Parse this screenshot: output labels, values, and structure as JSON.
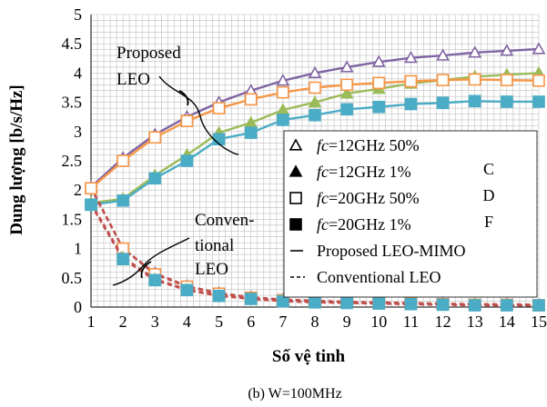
{
  "colors": {
    "purple": "#8064A2",
    "green": "#9BBB59",
    "orange": "#F79646",
    "blue": "#4BACC6",
    "dash_red": "#C0504D",
    "grid": "#bfbfbf"
  },
  "chart_data": {
    "type": "line",
    "xlabel": "Số vệ tinh",
    "ylabel": "Dung lượng [b/s/Hz]",
    "caption": "(b) W=100MHz",
    "xlim": [
      1,
      15
    ],
    "ylim": [
      0,
      5
    ],
    "x": [
      1,
      2,
      3,
      4,
      5,
      6,
      7,
      8,
      9,
      10,
      11,
      12,
      13,
      14,
      15
    ],
    "xticks": [
      "1",
      "2",
      "3",
      "4",
      "5",
      "6",
      "7",
      "8",
      "9",
      "10",
      "11",
      "12",
      "13",
      "14",
      "15"
    ],
    "yticks": [
      "0",
      "0.5",
      "1",
      "1.5",
      "2",
      "2.5",
      "3",
      "3.5",
      "4",
      "4.5",
      "5"
    ],
    "grid": true,
    "series": [
      {
        "name": "fc=12GHz 50%",
        "style": "solid",
        "marker": "triangle-open",
        "color": "purple",
        "values": [
          2.05,
          2.55,
          2.95,
          3.25,
          3.5,
          3.7,
          3.87,
          4.0,
          4.1,
          4.19,
          4.26,
          4.3,
          4.35,
          4.38,
          4.41
        ]
      },
      {
        "name": "fc=12GHz 1%",
        "style": "solid",
        "marker": "triangle-filled",
        "color": "green",
        "values": [
          1.78,
          1.85,
          2.25,
          2.6,
          2.98,
          3.15,
          3.37,
          3.5,
          3.65,
          3.73,
          3.82,
          3.88,
          3.94,
          3.97,
          4.0
        ]
      },
      {
        "name": "fc=20GHz 50%",
        "style": "solid",
        "marker": "square-open",
        "color": "orange",
        "values": [
          2.03,
          2.5,
          2.9,
          3.18,
          3.4,
          3.55,
          3.67,
          3.75,
          3.8,
          3.83,
          3.86,
          3.88,
          3.89,
          3.88,
          3.87
        ]
      },
      {
        "name": "fc=20GHz 1%",
        "style": "solid",
        "marker": "square-filled",
        "color": "blue",
        "values": [
          1.75,
          1.82,
          2.2,
          2.5,
          2.87,
          2.98,
          3.2,
          3.28,
          3.38,
          3.42,
          3.47,
          3.49,
          3.52,
          3.51,
          3.51
        ]
      },
      {
        "name": "",
        "style": "dashed",
        "marker": "triangle-open",
        "color": "purple",
        "values": [
          2.05,
          1.0,
          0.58,
          0.36,
          0.24,
          0.17,
          0.13,
          0.11,
          0.09,
          0.08,
          0.07,
          0.06,
          0.05,
          0.05,
          0.04
        ]
      },
      {
        "name": "",
        "style": "dashed",
        "marker": "square-open",
        "color": "orange",
        "values": [
          2.03,
          1.0,
          0.56,
          0.35,
          0.23,
          0.16,
          0.12,
          0.1,
          0.08,
          0.07,
          0.06,
          0.05,
          0.04,
          0.04,
          0.03
        ]
      },
      {
        "name": "",
        "style": "dashed",
        "marker": "triangle-filled",
        "color": "green",
        "values": [
          1.78,
          0.85,
          0.48,
          0.3,
          0.2,
          0.14,
          0.11,
          0.09,
          0.07,
          0.06,
          0.05,
          0.04,
          0.04,
          0.03,
          0.03
        ]
      },
      {
        "name": "",
        "style": "dashed",
        "marker": "square-filled",
        "color": "blue",
        "values": [
          1.75,
          0.82,
          0.46,
          0.29,
          0.19,
          0.14,
          0.1,
          0.08,
          0.07,
          0.06,
          0.05,
          0.04,
          0.03,
          0.03,
          0.03
        ]
      }
    ],
    "annotations": {
      "proposed_line1": "Proposed",
      "proposed_line2": "LEO",
      "conv_line1": "Conven-",
      "conv_line2": "tional",
      "conv_line3": "LEO"
    },
    "legend": {
      "placement": "center-right",
      "entries": [
        {
          "marker": "triangle-open",
          "fc": "fc",
          "text": "=12GHz 50%"
        },
        {
          "marker": "triangle-filled",
          "fc": "fc",
          "text": "=12GHz    1%"
        },
        {
          "marker": "square-open",
          "fc": "fc",
          "text": "=20GHz 50%"
        },
        {
          "marker": "square-filled",
          "fc": "fc",
          "text": "=20GHz    1%"
        },
        {
          "marker": "solid-line",
          "fc": "",
          "text": "Proposed LEO-MIMO"
        },
        {
          "marker": "dashed-line",
          "fc": "",
          "text": "Conventional LEO"
        }
      ],
      "cdf_letters": [
        "C",
        "D",
        "F"
      ]
    }
  }
}
